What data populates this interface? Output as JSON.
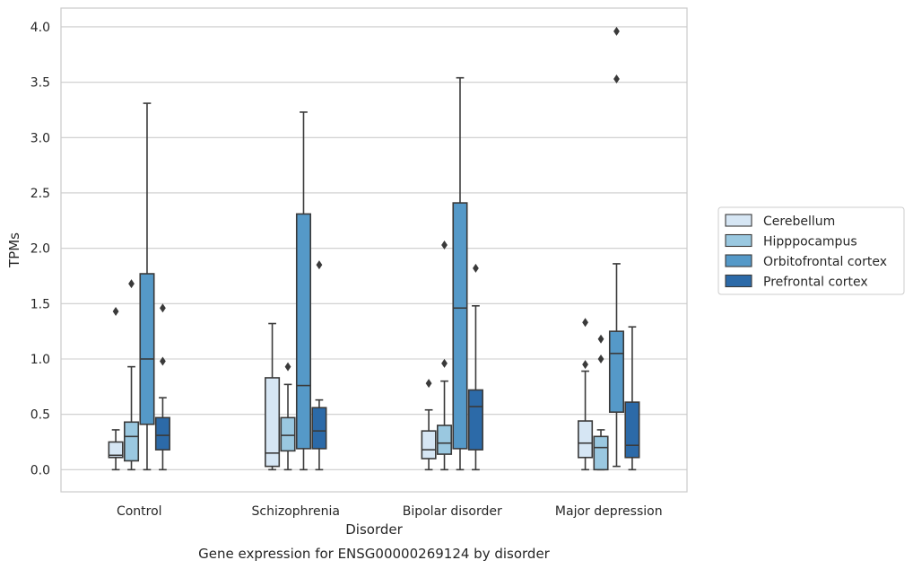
{
  "chart_data": {
    "type": "boxplot",
    "caption": "Gene expression for ENSG00000269124 by disorder",
    "xlabel": "Disorder",
    "ylabel": "TPMs",
    "ylim": [
      -0.2,
      4.17
    ],
    "yticks": [
      "0.0",
      "0.5",
      "1.0",
      "1.5",
      "2.0",
      "2.5",
      "3.0",
      "3.5",
      "4.0"
    ],
    "grid": true,
    "legend_position": "right",
    "categories": [
      "Control",
      "Schizophrenia",
      "Bipolar disorder",
      "Major depression"
    ],
    "series": [
      {
        "name": "Cerebellum",
        "color": "#d6e6f4",
        "boxes": [
          {
            "whisker_low": 0.0,
            "q1": 0.11,
            "median": 0.13,
            "q3": 0.25,
            "whisker_high": 0.36,
            "outliers": [
              1.43
            ]
          },
          {
            "whisker_low": 0.0,
            "q1": 0.03,
            "median": 0.15,
            "q3": 0.83,
            "whisker_high": 1.32,
            "outliers": []
          },
          {
            "whisker_low": 0.0,
            "q1": 0.1,
            "median": 0.18,
            "q3": 0.35,
            "whisker_high": 0.54,
            "outliers": [
              0.78
            ]
          },
          {
            "whisker_low": 0.0,
            "q1": 0.11,
            "median": 0.24,
            "q3": 0.44,
            "whisker_high": 0.89,
            "outliers": [
              0.95,
              1.33
            ]
          }
        ]
      },
      {
        "name": "Hipppocampus",
        "color": "#9ac8e0",
        "boxes": [
          {
            "whisker_low": 0.0,
            "q1": 0.08,
            "median": 0.3,
            "q3": 0.43,
            "whisker_high": 0.93,
            "outliers": [
              1.68
            ]
          },
          {
            "whisker_low": 0.0,
            "q1": 0.17,
            "median": 0.31,
            "q3": 0.47,
            "whisker_high": 0.77,
            "outliers": [
              0.93
            ]
          },
          {
            "whisker_low": 0.0,
            "q1": 0.14,
            "median": 0.24,
            "q3": 0.4,
            "whisker_high": 0.8,
            "outliers": [
              0.96,
              2.03
            ]
          },
          {
            "whisker_low": 0.0,
            "q1": 0.0,
            "median": 0.2,
            "q3": 0.3,
            "whisker_high": 0.36,
            "outliers": [
              1.0,
              1.18
            ]
          }
        ]
      },
      {
        "name": "Orbitofrontal cortex",
        "color": "#5599c8",
        "boxes": [
          {
            "whisker_low": 0.0,
            "q1": 0.41,
            "median": 1.0,
            "q3": 1.77,
            "whisker_high": 3.31,
            "outliers": []
          },
          {
            "whisker_low": 0.0,
            "q1": 0.19,
            "median": 0.76,
            "q3": 2.31,
            "whisker_high": 3.23,
            "outliers": []
          },
          {
            "whisker_low": 0.0,
            "q1": 0.19,
            "median": 1.46,
            "q3": 2.41,
            "whisker_high": 3.54,
            "outliers": []
          },
          {
            "whisker_low": 0.03,
            "q1": 0.52,
            "median": 1.05,
            "q3": 1.25,
            "whisker_high": 1.86,
            "outliers": [
              3.53,
              3.96
            ]
          }
        ]
      },
      {
        "name": "Prefrontal cortex",
        "color": "#2c6aa8",
        "boxes": [
          {
            "whisker_low": 0.0,
            "q1": 0.18,
            "median": 0.31,
            "q3": 0.47,
            "whisker_high": 0.65,
            "outliers": [
              0.98,
              1.46
            ]
          },
          {
            "whisker_low": 0.0,
            "q1": 0.19,
            "median": 0.35,
            "q3": 0.56,
            "whisker_high": 0.63,
            "outliers": [
              1.85
            ]
          },
          {
            "whisker_low": 0.0,
            "q1": 0.18,
            "median": 0.57,
            "q3": 0.72,
            "whisker_high": 1.48,
            "outliers": [
              1.82
            ]
          },
          {
            "whisker_low": 0.0,
            "q1": 0.11,
            "median": 0.22,
            "q3": 0.61,
            "whisker_high": 1.29,
            "outliers": []
          }
        ]
      }
    ]
  }
}
